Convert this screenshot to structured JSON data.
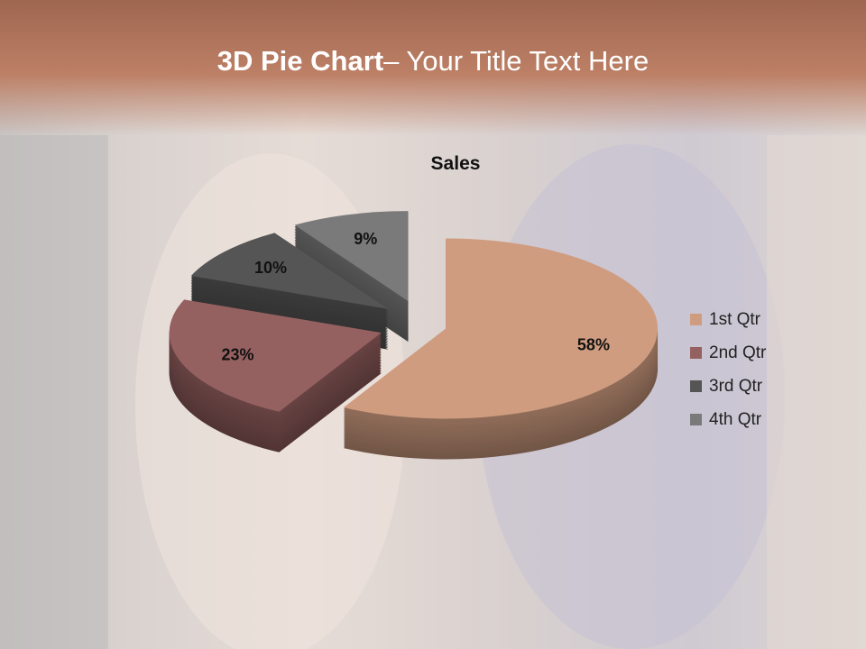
{
  "slide": {
    "title_bold": "3D Pie Chart",
    "title_rest": "– Your Title Text Here"
  },
  "chart_data": {
    "type": "pie",
    "title": "Sales",
    "categories": [
      "1st Qtr",
      "2nd Qtr",
      "3rd Qtr",
      "4th Qtr"
    ],
    "values": [
      58,
      23,
      10,
      9
    ],
    "labels": [
      "58%",
      "23%",
      "10%",
      "9%"
    ],
    "colors": [
      "#cf9c80",
      "#956060",
      "#555555",
      "#7a7a7a"
    ],
    "three_d": true,
    "exploded": true,
    "legend_position": "right"
  }
}
